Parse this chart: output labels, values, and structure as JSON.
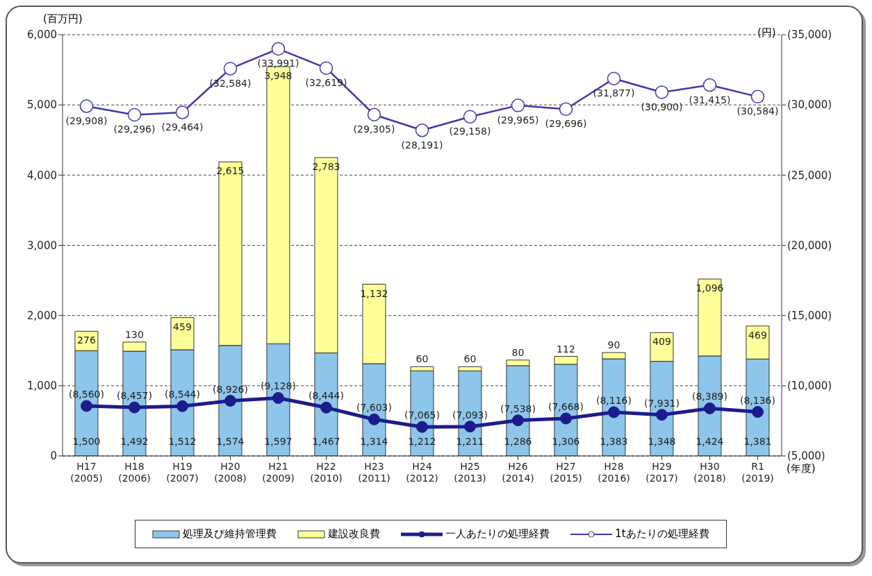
{
  "chart_data": {
    "type": "bar",
    "stacked": true,
    "categories": [
      "H17\n(2005)",
      "H18\n(2006)",
      "H19\n(2007)",
      "H20\n(2008)",
      "H21\n(2009)",
      "H22\n(2010)",
      "H23\n(2011)",
      "H24\n(2012)",
      "H25\n(2013)",
      "H26\n(2014)",
      "H27\n(2015)",
      "H28\n(2016)",
      "H29\n(2017)",
      "H30\n(2018)",
      "R1\n(2019)"
    ],
    "xlabel": "(年度)",
    "ylabel": "(百万円)",
    "y2label": "(円)",
    "series": [
      {
        "name": "処理及び維持管理費",
        "color": "#8ec5ea",
        "values": [
          1500,
          1492,
          1512,
          1574,
          1597,
          1467,
          1314,
          1212,
          1211,
          1286,
          1306,
          1383,
          1348,
          1424,
          1381
        ],
        "value_labels": [
          "1,500",
          "1,492",
          "1,512",
          "1,574",
          "1,597",
          "1,467",
          "1,314",
          "1,212",
          "1,211",
          "1,286",
          "1,306",
          "1,383",
          "1,348",
          "1,424",
          "1,381"
        ]
      },
      {
        "name": "建設改良費",
        "color": "#ffff99",
        "values": [
          276,
          130,
          459,
          2615,
          3948,
          2783,
          1132,
          60,
          60,
          80,
          112,
          90,
          409,
          1096,
          469
        ],
        "value_labels": [
          "276",
          "130",
          "459",
          "2,615",
          "3,948",
          "2,783",
          "1,132",
          "60",
          "60",
          "80",
          "112",
          "90",
          "409",
          "1,096",
          "469"
        ]
      },
      {
        "name": "一人あたりの処理経費",
        "type": "line",
        "axis": "y2",
        "color": "#1c1c8c",
        "values": [
          8560,
          8457,
          8544,
          8926,
          9128,
          8444,
          7603,
          7065,
          7093,
          7538,
          7668,
          8116,
          7931,
          8389,
          8136
        ],
        "value_labels": [
          "(8,560)",
          "(8,457)",
          "(8,544)",
          "(8,926)",
          "(9,128)",
          "(8,444)",
          "(7,603)",
          "(7,065)",
          "(7,093)",
          "(7,538)",
          "(7,668)",
          "(8,116)",
          "(7,931)",
          "(8,389)",
          "(8,136)"
        ]
      },
      {
        "name": "1tあたりの処理経費",
        "type": "line",
        "axis": "y2",
        "color": "#3a3aa8",
        "values": [
          29908,
          29296,
          29464,
          32584,
          33991,
          32619,
          29305,
          28191,
          29158,
          29965,
          29696,
          31877,
          30900,
          31415,
          30584
        ],
        "value_labels": [
          "(29,908)",
          "(29,296)",
          "(29,464)",
          "(32,584)",
          "(33,991)",
          "(32,619)",
          "(29,305)",
          "(28,191)",
          "(29,158)",
          "(29,965)",
          "(29,696)",
          "(31,877)",
          "(30,900)",
          "(31,415)",
          "(30,584)"
        ]
      }
    ],
    "ylim": [
      0,
      6000
    ],
    "yticks": [
      0,
      {
        "value": 1000,
        "label": "1,000"
      },
      {
        "value": 2000,
        "label": "2,000"
      },
      {
        "value": 3000,
        "label": "3,000"
      },
      {
        "value": 4000,
        "label": "4,000"
      },
      {
        "value": 5000,
        "label": "5,000"
      },
      {
        "value": 6000,
        "label": "6,000"
      }
    ],
    "y2lim": [
      5000,
      35000
    ],
    "y2ticks": [
      {
        "value": 5000,
        "label": "(5,000)"
      },
      {
        "value": 10000,
        "label": "(10,000)"
      },
      {
        "value": 15000,
        "label": "(15,000)"
      },
      {
        "value": 20000,
        "label": "(20,000)"
      },
      {
        "value": 25000,
        "label": "(25,000)"
      },
      {
        "value": 30000,
        "label": "(30,000)"
      },
      {
        "value": 35000,
        "label": "(35,000)"
      }
    ],
    "grid": "y",
    "legend": "bottom",
    "marker": "circle"
  }
}
